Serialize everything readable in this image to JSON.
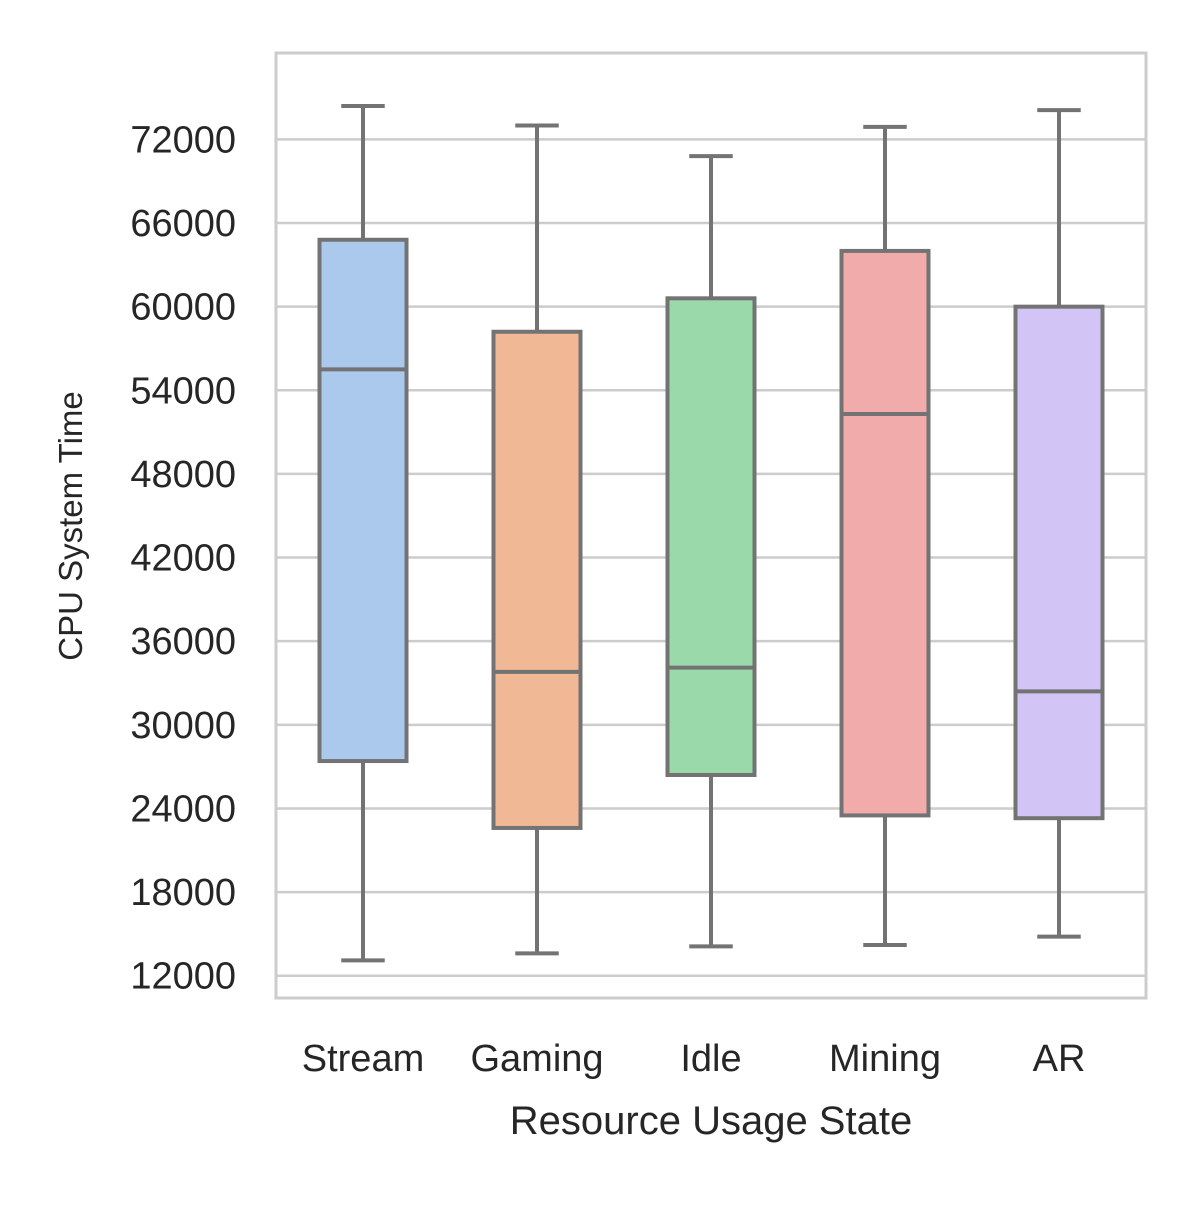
{
  "chart_data": {
    "type": "box",
    "xlabel": "Resource Usage State",
    "ylabel": "CPU System Time",
    "ylim": [
      10400,
      78200
    ],
    "yticks": [
      12000,
      18000,
      24000,
      30000,
      36000,
      42000,
      48000,
      54000,
      60000,
      66000,
      72000
    ],
    "ytick_labels": [
      "12000",
      "18000",
      "24000",
      "30000",
      "36000",
      "42000",
      "48000",
      "54000",
      "60000",
      "66000",
      "72000"
    ],
    "grid": "horizontal",
    "categories": [
      "Stream",
      "Gaming",
      "Idle",
      "Mining",
      "AR"
    ],
    "boxes": [
      {
        "category": "Stream",
        "min": 13100,
        "q1": 27400,
        "median": 55500,
        "q3": 64800,
        "max": 74400,
        "color": "#abc9ec"
      },
      {
        "category": "Gaming",
        "min": 13600,
        "q1": 22600,
        "median": 33800,
        "q3": 58200,
        "max": 73000,
        "color": "#f0b894"
      },
      {
        "category": "Idle",
        "min": 14100,
        "q1": 26400,
        "median": 34100,
        "q3": 60600,
        "max": 70800,
        "color": "#9ad9a9"
      },
      {
        "category": "Mining",
        "min": 14200,
        "q1": 23500,
        "median": 52300,
        "q3": 64000,
        "max": 72900,
        "color": "#f2abab"
      },
      {
        "category": "AR",
        "min": 14800,
        "q1": 23300,
        "median": 32400,
        "q3": 60000,
        "max": 74100,
        "color": "#d2c5f5"
      }
    ],
    "box_edge_color": "#737373",
    "grid_color": "#cccccc",
    "frame_color": "#cccccc"
  }
}
